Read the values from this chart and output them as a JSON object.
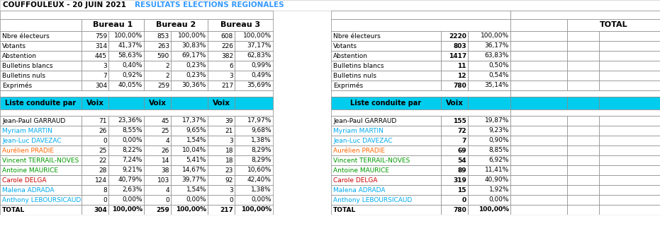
{
  "title_left": "COUFFOULEUX - 20 JUIN 2021",
  "title_right": "RESULTATS ELECTIONS REGIONALES",
  "stats_rows": [
    [
      "Nbre électeurs",
      "759",
      "100,00%",
      "853",
      "100,00%",
      "608",
      "100,00%",
      "Nbre électeurs",
      "2220",
      "100,00%"
    ],
    [
      "Votants",
      "314",
      "41,37%",
      "263",
      "30,83%",
      "226",
      "37,17%",
      "Votants",
      "803",
      "36,17%"
    ],
    [
      "Abstention",
      "445",
      "58,63%",
      "590",
      "69,17%",
      "382",
      "62,83%",
      "Abstention",
      "1417",
      "63,83%"
    ],
    [
      "Bulletins blancs",
      "3",
      "0,40%",
      "2",
      "0,23%",
      "6",
      "0,99%",
      "Bulletins blancs",
      "11",
      "0,50%"
    ],
    [
      "Bulletins nuls",
      "7",
      "0,92%",
      "2",
      "0,23%",
      "3",
      "0,49%",
      "Bulletins nuls",
      "12",
      "0,54%"
    ],
    [
      "Exprimés",
      "304",
      "40,05%",
      "259",
      "30,36%",
      "217",
      "35,69%",
      "Exprimés",
      "780",
      "35,14%"
    ]
  ],
  "candidate_rows": [
    [
      "Jean-Paul GARRAUD",
      "71",
      "23,36%",
      "45",
      "17,37%",
      "39",
      "17,97%",
      "Jean-Paul GARRAUD",
      "155",
      "19,87%",
      "#000000",
      "#000000"
    ],
    [
      "Myriam MARTIN",
      "26",
      "8,55%",
      "25",
      "9,65%",
      "21",
      "9,68%",
      "Myriam MARTIN",
      "72",
      "9,23%",
      "#00aaee",
      "#00aaee"
    ],
    [
      "Jean-Luc DAVEZAC",
      "0",
      "0,00%",
      "4",
      "1,54%",
      "3",
      "1,38%",
      "Jean-Luc DAVEZAC",
      "7",
      "0,90%",
      "#00aaee",
      "#00aaee"
    ],
    [
      "Aurélien PRADIE",
      "25",
      "8,22%",
      "26",
      "10,04%",
      "18",
      "8,29%",
      "Aurélien PRADIE",
      "69",
      "8,85%",
      "#ff6600",
      "#ff6600"
    ],
    [
      "Vincent TERRAIL-NOVES",
      "22",
      "7,24%",
      "14",
      "5,41%",
      "18",
      "8,29%",
      "Vincent TERRAIL-NOVES",
      "54",
      "6,92%",
      "#009900",
      "#009900"
    ],
    [
      "Antoine MAURICE",
      "28",
      "9,21%",
      "38",
      "14,67%",
      "23",
      "10,60%",
      "Antoine MAURICE",
      "89",
      "11,41%",
      "#009900",
      "#009900"
    ],
    [
      "Carole DELGA",
      "124",
      "40,79%",
      "103",
      "39,77%",
      "92",
      "42,40%",
      "Carole DELGA",
      "319",
      "40,90%",
      "#cc0000",
      "#cc0000"
    ],
    [
      "Malena ADRADA",
      "8",
      "2,63%",
      "4",
      "1,54%",
      "3",
      "1,38%",
      "Malena ADRADA",
      "15",
      "1,92%",
      "#00aaee",
      "#00aaee"
    ],
    [
      "Anthony LEBOURSICAUD",
      "0",
      "0,00%",
      "0",
      "0,00%",
      "0",
      "0,00%",
      "Anthony LEBOURSICAUD",
      "0",
      "0,00%",
      "#00aaee",
      "#00aaee"
    ],
    [
      "TOTAL",
      "304",
      "100,00%",
      "259",
      "100,00%",
      "217",
      "100,00%",
      "TOTAL",
      "780",
      "100,00%",
      "#000000",
      "#000000"
    ]
  ],
  "cyan": "#00ccee",
  "white": "#ffffff",
  "light_gray": "#e8e8e8",
  "grid_color": "#888888",
  "title_color_left": "#000000",
  "title_color_right": "#3399ff"
}
